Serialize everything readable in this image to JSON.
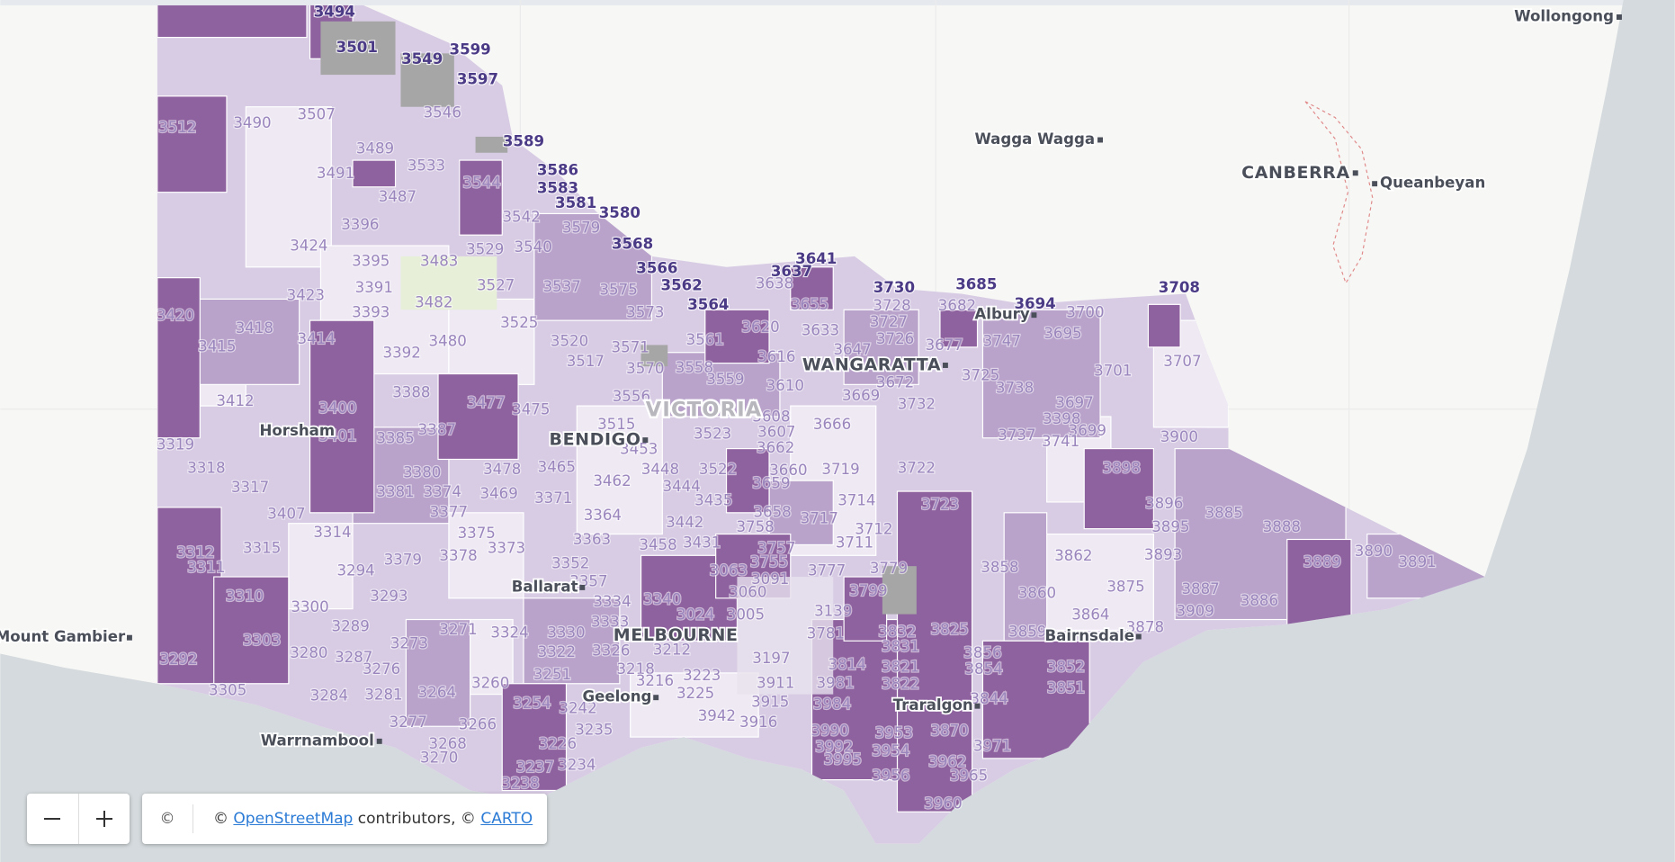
{
  "map": {
    "places": [
      "Wollongong",
      "Wagga Wagga",
      "CANBERRA",
      "Queanbeyan",
      "Albury",
      "WANGARATTA",
      "VICTORIA",
      "BENDIGO",
      "Horsham",
      "Ballarat",
      "MELBOURNE",
      "Mount Gambier",
      "Bairnsdale",
      "Geelong",
      "Traralgon",
      "Warrnambool"
    ],
    "postcodes": [
      "3494",
      "3501",
      "3549",
      "3599",
      "3597",
      "3507",
      "3490",
      "3512",
      "3546",
      "3589",
      "3489",
      "3533",
      "3586",
      "3491",
      "3544",
      "3583",
      "3487",
      "3580",
      "3581",
      "3579",
      "3542",
      "3396",
      "3424",
      "3540",
      "3568",
      "3529",
      "3566",
      "3395",
      "3483",
      "3641",
      "3637",
      "3391",
      "3423",
      "3527",
      "3537",
      "3575",
      "3562",
      "3638",
      "3730",
      "3685",
      "3708",
      "3420",
      "3393",
      "3482",
      "3564",
      "3694",
      "3700",
      "3655",
      "3728",
      "3682",
      "3418",
      "3414",
      "3525",
      "3480",
      "3573",
      "3620",
      "3633",
      "3727",
      "3415",
      "3392",
      "3520",
      "3571",
      "3561",
      "3616",
      "3647",
      "3726",
      "3677",
      "3747",
      "3695",
      "3707",
      "3701",
      "3517",
      "3570",
      "3558",
      "3559",
      "3610",
      "3672",
      "3725",
      "3388",
      "3412",
      "3477",
      "3400",
      "3475",
      "3556",
      "3669",
      "3738",
      "3697",
      "3732",
      "3401",
      "3385",
      "3387",
      "3515",
      "3608",
      "3666",
      "3523",
      "3607",
      "3398",
      "3699",
      "3737",
      "3741",
      "3900",
      "3319",
      "3453",
      "3662",
      "3318",
      "3380",
      "3478",
      "3465",
      "3448",
      "3522",
      "3660",
      "3719",
      "3722",
      "3898",
      "3381",
      "3374",
      "3469",
      "3371",
      "3462",
      "3444",
      "3659",
      "3714",
      "3723",
      "3896",
      "3317",
      "3407",
      "3377",
      "3435",
      "3364",
      "3658",
      "3717",
      "3885",
      "3888",
      "3895",
      "3314",
      "3375",
      "3442",
      "3758",
      "3712",
      "3315",
      "3312",
      "3373",
      "3363",
      "3458",
      "3431",
      "3711",
      "3862",
      "3893",
      "3889",
      "3890",
      "3891",
      "3294",
      "3379",
      "3378",
      "3352",
      "3063",
      "3757",
      "3755",
      "3777",
      "3779",
      "3858",
      "3311",
      "3357",
      "3091",
      "3887",
      "3860",
      "3875",
      "3799",
      "3293",
      "3310",
      "3340",
      "3060",
      "3300",
      "3334",
      "3024",
      "3005",
      "3139",
      "3886",
      "3909",
      "3864",
      "3289",
      "3271",
      "3333",
      "3878",
      "3303",
      "3273",
      "3324",
      "3330",
      "3832",
      "3825",
      "3859",
      "3292",
      "3287",
      "3322",
      "3326",
      "3212",
      "3197",
      "3781",
      "3831",
      "3856",
      "3280",
      "3276",
      "3251",
      "3218",
      "3821",
      "3814",
      "3854",
      "3852",
      "3223",
      "3216",
      "3911",
      "3981",
      "3822",
      "3851",
      "3305",
      "3260",
      "3225",
      "3284",
      "3281",
      "3264",
      "3915",
      "3984",
      "3844",
      "3254",
      "3242",
      "3942",
      "3916",
      "3953",
      "3870",
      "3266",
      "3277",
      "3235",
      "3268",
      "3226",
      "3990",
      "3971",
      "3992",
      "3954",
      "3270",
      "3995",
      "3962",
      "3237",
      "3234",
      "3956",
      "3965",
      "3238",
      "3960"
    ]
  },
  "controls": {
    "attribution": {
      "icon": "©",
      "prefix": "© ",
      "osm": "OpenStreetMap",
      "middle": " contributors, © ",
      "carto": "CARTO"
    }
  }
}
